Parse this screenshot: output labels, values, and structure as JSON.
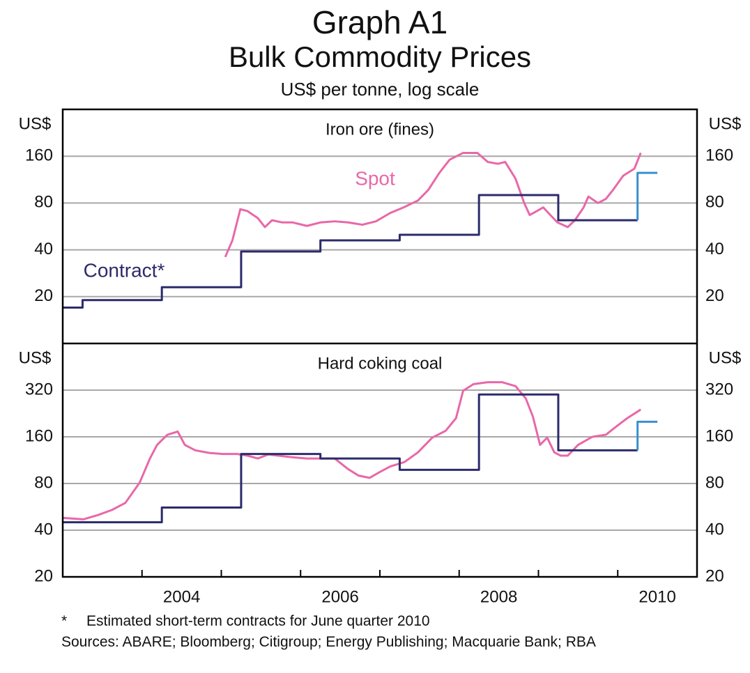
{
  "title": "Graph A1",
  "chart_title": "Bulk Commodity Prices",
  "subtitle": "US$ per tonne, log scale",
  "footnote_mark": "*",
  "footnote": "Estimated short-term contracts for June quarter 2010",
  "sources": "Sources: ABARE; Bloomberg; Citigroup; Energy Publishing; Macquarie Bank; RBA",
  "chart_data": [
    {
      "type": "line",
      "title": "Iron ore (fines)",
      "ylabel": "US$",
      "log": true,
      "grid": true,
      "xlim": [
        2003,
        2011
      ],
      "ylim": [
        10,
        320
      ],
      "yticks": [
        20,
        40,
        80,
        160
      ],
      "series": [
        {
          "name": "Spot",
          "color": "#e868a8",
          "x": [
            2005.05,
            2005.14,
            2005.24,
            2005.33,
            2005.46,
            2005.55,
            2005.64,
            2005.77,
            2005.9,
            2006.08,
            2006.25,
            2006.43,
            2006.6,
            2006.78,
            2006.95,
            2007.13,
            2007.3,
            2007.48,
            2007.61,
            2007.75,
            2007.88,
            2008.05,
            2008.23,
            2008.36,
            2008.49,
            2008.58,
            2008.71,
            2008.82,
            2008.89,
            2008.98,
            2009.06,
            2009.15,
            2009.24,
            2009.37,
            2009.46,
            2009.57,
            2009.63,
            2009.75,
            2009.85,
            2009.94,
            2010.07,
            2010.21,
            2010.29
          ],
          "values": [
            36,
            46,
            73,
            71,
            64,
            56,
            62,
            60,
            60,
            57,
            60,
            61,
            60,
            58,
            61,
            69,
            75,
            83,
            97,
            125,
            152,
            168,
            168,
            147,
            143,
            147,
            115,
            80,
            67,
            71,
            75,
            67,
            60,
            56,
            62,
            75,
            88,
            80,
            85,
            97,
            120,
            133,
            168
          ]
        },
        {
          "name": "Contract*",
          "color": "#2b2b6b",
          "drawstyle": "steps-post",
          "x": [
            2003,
            2003.25,
            2004.25,
            2005.25,
            2006.25,
            2007.25,
            2008.25,
            2009.25,
            2010.25
          ],
          "values": [
            17,
            19,
            23,
            39,
            46,
            50,
            90,
            62,
            62
          ]
        },
        {
          "color": "#3a8fd0",
          "drawstyle": "steps-post",
          "x": [
            2010.25,
            2010.25,
            2010.5
          ],
          "values": [
            62,
            125,
            125
          ]
        }
      ]
    },
    {
      "type": "line",
      "title": "Hard coking coal",
      "ylabel": "US$",
      "log": true,
      "grid": true,
      "xlim": [
        2003,
        2011
      ],
      "ylim": [
        20,
        640
      ],
      "yticks": [
        20,
        40,
        80,
        160,
        320
      ],
      "xtick_marks": [
        2004,
        2005,
        2006,
        2007,
        2008,
        2009,
        2010
      ],
      "xticks": [
        {
          "value": 2004.5,
          "label": "2004"
        },
        {
          "value": 2006.5,
          "label": "2006"
        },
        {
          "value": 2008.5,
          "label": "2008"
        },
        {
          "value": 2010.5,
          "label": "2010"
        }
      ],
      "series": [
        {
          "color": "#e868a8",
          "x": [
            2003.0,
            2003.26,
            2003.44,
            2003.62,
            2003.79,
            2003.97,
            2004.1,
            2004.19,
            2004.32,
            2004.45,
            2004.54,
            2004.67,
            2004.85,
            2005.02,
            2005.2,
            2005.33,
            2005.46,
            2005.59,
            2005.72,
            2005.9,
            2006.08,
            2006.25,
            2006.43,
            2006.6,
            2006.73,
            2006.87,
            2007.0,
            2007.13,
            2007.31,
            2007.48,
            2007.66,
            2007.83,
            2007.96,
            2008.05,
            2008.18,
            2008.36,
            2008.54,
            2008.71,
            2008.84,
            2008.93,
            2009.02,
            2009.11,
            2009.2,
            2009.28,
            2009.37,
            2009.5,
            2009.68,
            2009.85,
            2009.99,
            2010.12,
            2010.29
          ],
          "values": [
            48,
            47,
            50,
            54,
            60,
            81,
            116,
            142,
            165,
            173,
            142,
            131,
            126,
            124,
            124,
            121,
            116,
            123,
            121,
            118,
            116,
            116,
            116,
            99,
            90,
            87,
            95,
            103,
            110,
            127,
            158,
            175,
            211,
            317,
            350,
            360,
            360,
            340,
            283,
            216,
            142,
            158,
            127,
            121,
            121,
            142,
            160,
            165,
            188,
            211,
            240
          ]
        },
        {
          "color": "#2b2b6b",
          "drawstyle": "steps-post",
          "x": [
            2003,
            2004.25,
            2005.25,
            2006.25,
            2007.25,
            2008.25,
            2009.25,
            2010.25
          ],
          "values": [
            45,
            56,
            124,
            116,
            98,
            300,
            131,
            131
          ]
        },
        {
          "color": "#3a8fd0",
          "drawstyle": "steps-post",
          "x": [
            2010.25,
            2010.25,
            2010.5
          ],
          "values": [
            131,
            200,
            200
          ]
        }
      ]
    }
  ]
}
